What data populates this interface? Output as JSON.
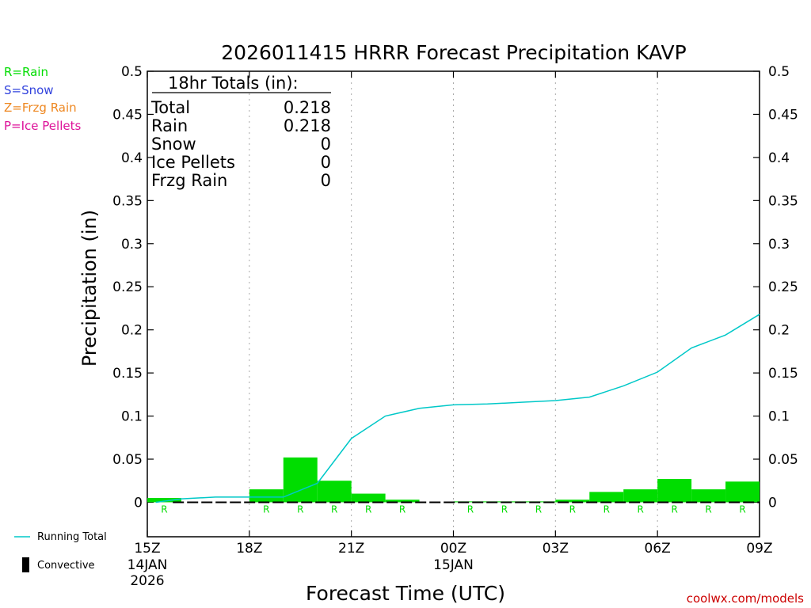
{
  "chart_data": {
    "type": "bar",
    "title": "2026011415 HRRR Forecast Precipitation KAVP",
    "xlabel": "Forecast Time (UTC)",
    "ylabel": "Precipitation (in)",
    "ylim": [
      -0.04,
      0.5
    ],
    "yticks": [
      "0.5",
      "0.45",
      "0.4",
      "0.35",
      "0.3",
      "0.25",
      "0.2",
      "0.15",
      "0.1",
      "0.05",
      "0"
    ],
    "ytick_values": [
      0.5,
      0.45,
      0.4,
      0.35,
      0.3,
      0.25,
      0.2,
      0.15,
      0.1,
      0.05,
      0
    ],
    "xlim_hours": [
      0,
      18
    ],
    "xticks": [
      {
        "hour": 0,
        "label": "15Z",
        "sub1": "14JAN",
        "sub2": "2026"
      },
      {
        "hour": 3,
        "label": "18Z",
        "sub1": "",
        "sub2": ""
      },
      {
        "hour": 6,
        "label": "21Z",
        "sub1": "",
        "sub2": ""
      },
      {
        "hour": 9,
        "label": "00Z",
        "sub1": "15JAN",
        "sub2": ""
      },
      {
        "hour": 12,
        "label": "03Z",
        "sub1": "",
        "sub2": ""
      },
      {
        "hour": 15,
        "label": "06Z",
        "sub1": "",
        "sub2": ""
      },
      {
        "hour": 18,
        "label": "09Z",
        "sub1": "",
        "sub2": ""
      }
    ],
    "gridlines_hours": [
      3,
      6,
      9,
      12,
      15
    ],
    "bars": {
      "name": "Hourly Precipitation",
      "hours": [
        1,
        2,
        3,
        4,
        5,
        6,
        7,
        8,
        9,
        10,
        11,
        12,
        13,
        14,
        15,
        16,
        17,
        18
      ],
      "values": [
        0.005,
        0,
        0,
        0.015,
        0.052,
        0.025,
        0.01,
        0.003,
        0,
        0.001,
        0.001,
        0.001,
        0.003,
        0.012,
        0.015,
        0.027,
        0.015,
        0.024
      ],
      "types": [
        "R",
        "",
        "",
        "R",
        "R",
        "R",
        "R",
        "R",
        "",
        "R",
        "R",
        "R",
        "R",
        "R",
        "R",
        "R",
        "R",
        "R"
      ]
    },
    "running_total": {
      "name": "Running Total",
      "hours": [
        0.25,
        1,
        2,
        3,
        3.5,
        4,
        5,
        6,
        7,
        8,
        9,
        10,
        11,
        12,
        13,
        14,
        15,
        16,
        17,
        18
      ],
      "values": [
        0,
        0.004,
        0.006,
        0.006,
        0.006,
        0.006,
        0.022,
        0.074,
        0.1,
        0.109,
        0.113,
        0.114,
        0.116,
        0.118,
        0.122,
        0.135,
        0.151,
        0.179,
        0.194,
        0.218
      ]
    },
    "colors": {
      "rain": "#00dd00",
      "snow": "#3344dd",
      "frzg": "#ee8822",
      "ice": "#dd1199",
      "running_total": "#00c8c8",
      "convective": "#000000",
      "credit": "#cc0000"
    }
  },
  "type_legend": [
    {
      "text": "R=Rain",
      "color": "#00dd00"
    },
    {
      "text": "S=Snow",
      "color": "#3344dd"
    },
    {
      "text": "Z=Frzg Rain",
      "color": "#ee8822"
    },
    {
      "text": "P=Ice Pellets",
      "color": "#dd1199"
    }
  ],
  "totals_box": {
    "header": "18hr Totals (in):",
    "rows": [
      {
        "label": "Total",
        "value": "0.218"
      },
      {
        "label": "Rain",
        "value": "0.218"
      },
      {
        "label": "Snow",
        "value": "0"
      },
      {
        "label": "Ice Pellets",
        "value": "0"
      },
      {
        "label": "Frzg Rain",
        "value": "0"
      }
    ]
  },
  "bottom_legend": {
    "running_total": "Running Total",
    "convective": "Convective"
  },
  "credit": "coolwx.com/models"
}
